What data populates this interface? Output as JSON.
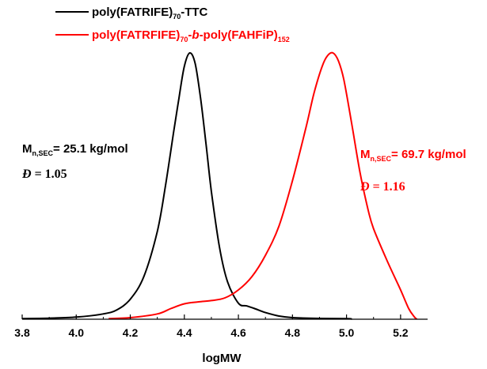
{
  "chart_data": {
    "type": "line",
    "xlabel": "logMW",
    "ylabel": "",
    "xlim": [
      3.8,
      5.3
    ],
    "ylim": [
      0,
      1.0
    ],
    "x_ticks": [
      "3.8",
      "4.0",
      "4.2",
      "4.4",
      "4.6",
      "4.8",
      "5.0",
      "5.2"
    ],
    "y_axis_shown": false,
    "grid": false,
    "legend_position": "top-left",
    "series": [
      {
        "name": "poly(FATRIFE)70-TTC",
        "name_parts": [
          {
            "text": "poly(FATRIFE)",
            "sub": false
          },
          {
            "text": "70",
            "sub": true
          },
          {
            "text": "-TTC",
            "sub": false
          }
        ],
        "color": "#000000",
        "x": [
          3.8,
          3.9,
          4.0,
          4.1,
          4.15,
          4.2,
          4.25,
          4.3,
          4.33,
          4.36,
          4.38,
          4.4,
          4.42,
          4.44,
          4.46,
          4.48,
          4.5,
          4.53,
          4.56,
          4.6,
          4.63,
          4.66,
          4.7,
          4.75,
          4.8,
          4.9,
          5.0,
          5.02
        ],
        "y": [
          0.002,
          0.004,
          0.008,
          0.02,
          0.035,
          0.075,
          0.16,
          0.33,
          0.5,
          0.7,
          0.83,
          0.95,
          1.0,
          0.96,
          0.83,
          0.66,
          0.48,
          0.27,
          0.14,
          0.06,
          0.05,
          0.04,
          0.025,
          0.012,
          0.006,
          0.003,
          0.002,
          0.001
        ]
      },
      {
        "name": "poly(FATRFIFE)70-b-poly(FAHFiP)152",
        "name_parts": [
          {
            "text": "poly(FATRFIFE)",
            "sub": false
          },
          {
            "text": "70",
            "sub": true
          },
          {
            "text": "-",
            "sub": false
          },
          {
            "text": "b",
            "sub": false,
            "italic": true
          },
          {
            "text": "-poly(FAHFiP)",
            "sub": false
          },
          {
            "text": "152",
            "sub": true
          }
        ],
        "color": "#ff0000",
        "x": [
          4.12,
          4.2,
          4.3,
          4.35,
          4.4,
          4.45,
          4.5,
          4.55,
          4.6,
          4.65,
          4.7,
          4.75,
          4.8,
          4.85,
          4.88,
          4.91,
          4.93,
          4.95,
          4.97,
          4.99,
          5.02,
          5.05,
          5.08,
          5.1,
          5.15,
          5.2,
          5.23,
          5.25,
          5.26
        ],
        "y": [
          0.002,
          0.006,
          0.02,
          0.04,
          0.058,
          0.065,
          0.07,
          0.08,
          0.11,
          0.16,
          0.24,
          0.35,
          0.52,
          0.72,
          0.85,
          0.95,
          0.99,
          1.0,
          0.97,
          0.9,
          0.73,
          0.55,
          0.41,
          0.34,
          0.22,
          0.11,
          0.04,
          0.01,
          0.0
        ]
      }
    ],
    "annotations": [
      {
        "color": "#000000",
        "mn_parts": [
          {
            "text": "M",
            "sub": false
          },
          {
            "text": "n,SEC",
            "sub": true
          },
          {
            "text": "= 25.1 kg/mol",
            "sub": false
          }
        ],
        "dispersity_symbol": "Đ",
        "dispersity_value": " = 1.05"
      },
      {
        "color": "#ff0000",
        "mn_parts": [
          {
            "text": "M",
            "sub": false
          },
          {
            "text": "n,SEC",
            "sub": true
          },
          {
            "text": "= 69.7 kg/mol",
            "sub": false
          }
        ],
        "dispersity_symbol": "Đ",
        "dispersity_value": " = 1.16"
      }
    ]
  }
}
